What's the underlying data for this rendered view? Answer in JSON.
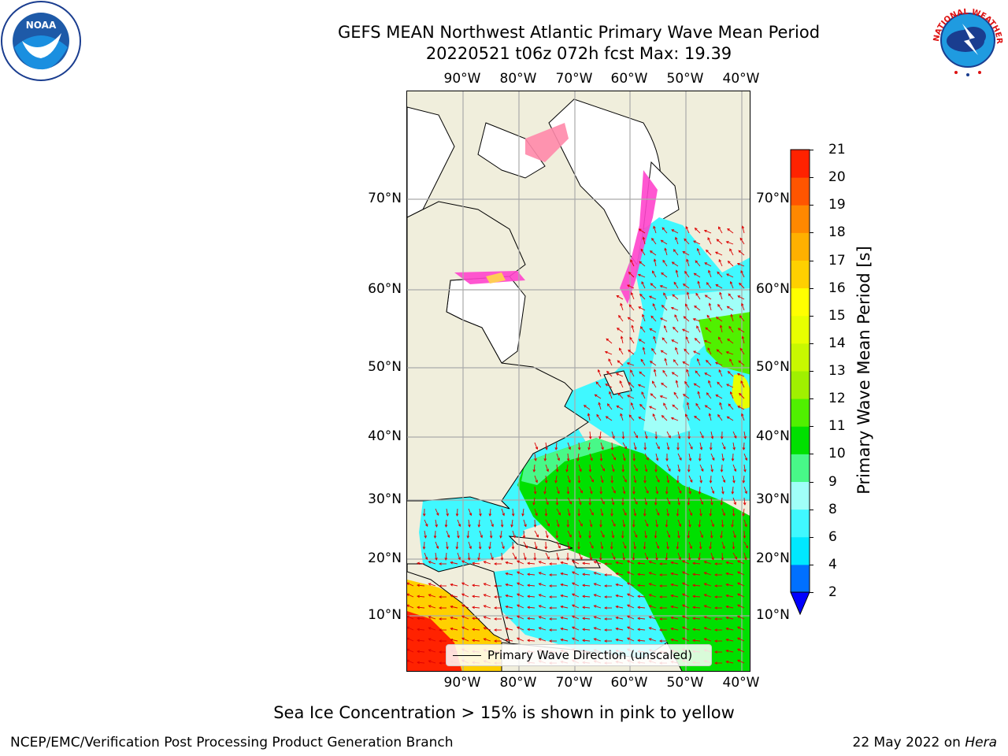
{
  "title": {
    "line1": "GEFS MEAN Northwest Atlantic Primary Wave Mean Period",
    "line2": "20220521 t06z 072h fcst   Max: 19.39"
  },
  "logos": {
    "noaa": {
      "icon": "noaa-logo-icon",
      "text": "NOAA",
      "ring_text": "NATIONAL OCEANIC AND ATMOSPHERIC ADMINISTRATION · U.S. DEPARTMENT OF COMMERCE"
    },
    "nws": {
      "icon": "nws-logo-icon",
      "ring_text": "NATIONAL WEATHER SERVICE"
    }
  },
  "map": {
    "longitude_labels": [
      "90°W",
      "80°W",
      "70°W",
      "60°W",
      "50°W",
      "40°W"
    ],
    "latitude_labels": [
      "70°N",
      "60°N",
      "50°N",
      "40°N",
      "30°N",
      "20°N",
      "10°N"
    ],
    "land_color": "#f0eedc",
    "ice_colors": [
      "#ff44cc",
      "#ff88aa",
      "#ffcc55",
      "#ffee00"
    ],
    "legend": {
      "label": "Primary Wave Direction (unscaled)",
      "arrow_color": "#dd0000"
    }
  },
  "colorbar": {
    "label": "Primary Wave Mean Period [s]",
    "ticks": [
      "2",
      "4",
      "6",
      "8",
      "9",
      "10",
      "11",
      "12",
      "13",
      "14",
      "15",
      "16",
      "17",
      "18",
      "19",
      "20",
      "21"
    ],
    "colors": [
      "#0070ff",
      "#00e8ff",
      "#40f8ff",
      "#a0fff8",
      "#48f888",
      "#00e000",
      "#50f000",
      "#a0f000",
      "#c8f800",
      "#e8ff00",
      "#ffff00",
      "#ffd000",
      "#ffb000",
      "#ff8800",
      "#ff5500",
      "#ff2200"
    ],
    "under_color": "#0000ff"
  },
  "notes": {
    "sea_ice": "Sea Ice Concentration > 15% is shown in pink to yellow"
  },
  "footer": {
    "left": "NCEP/EMC/Verification Post Processing Product Generation Branch",
    "right_prefix": "22 May 2022 on ",
    "right_host": "Hera"
  }
}
